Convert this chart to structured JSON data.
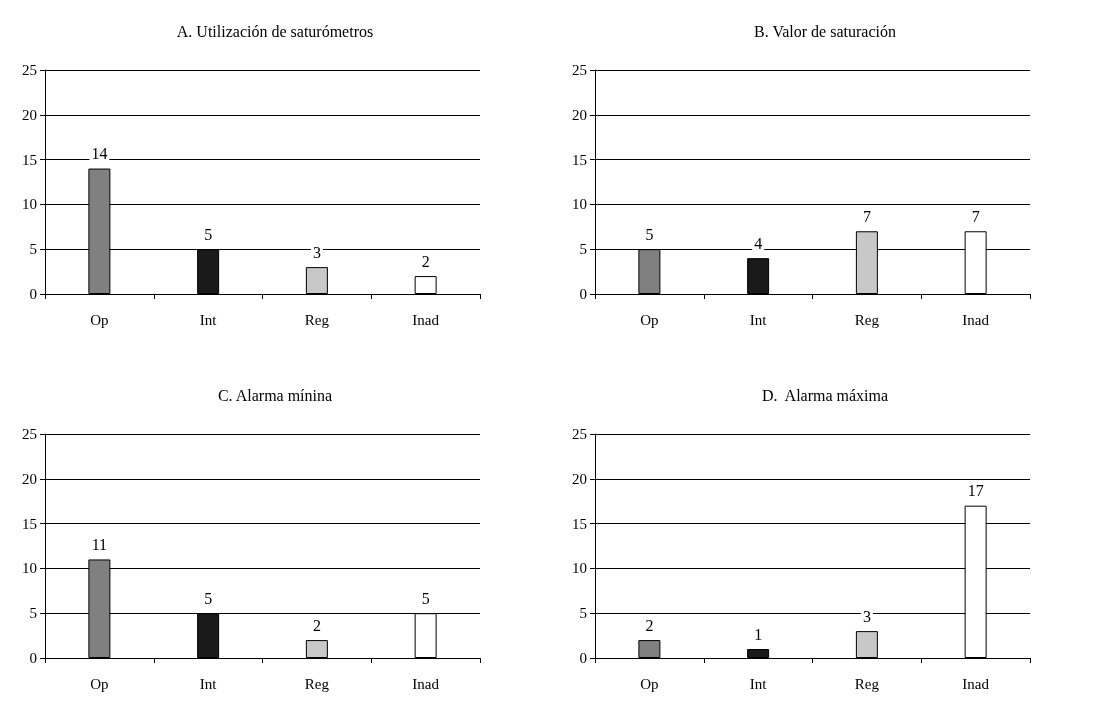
{
  "chart_data": [
    {
      "type": "bar",
      "title": "A. Utilización de saturómetros",
      "categories": [
        "Op",
        "Int",
        "Reg",
        "Inad"
      ],
      "values": [
        14,
        5,
        3,
        2
      ],
      "colors": [
        "#808080",
        "#1a1a1a",
        "#c8c8c8",
        "#ffffff"
      ],
      "ylim": [
        0,
        25
      ],
      "yticks": [
        0,
        5,
        10,
        15,
        20,
        25
      ],
      "grid": "y",
      "data_labels": true
    },
    {
      "type": "bar",
      "title": "B. Valor de saturación",
      "categories": [
        "Op",
        "Int",
        "Reg",
        "Inad"
      ],
      "values": [
        5,
        4,
        7,
        7
      ],
      "colors": [
        "#808080",
        "#1a1a1a",
        "#c8c8c8",
        "#ffffff"
      ],
      "ylim": [
        0,
        25
      ],
      "yticks": [
        0,
        5,
        10,
        15,
        20,
        25
      ],
      "grid": "y",
      "data_labels": true
    },
    {
      "type": "bar",
      "title": "C. Alarma mínina",
      "categories": [
        "Op",
        "Int",
        "Reg",
        "Inad"
      ],
      "values": [
        11,
        5,
        2,
        5
      ],
      "colors": [
        "#808080",
        "#1a1a1a",
        "#c8c8c8",
        "#ffffff"
      ],
      "ylim": [
        0,
        25
      ],
      "yticks": [
        0,
        5,
        10,
        15,
        20,
        25
      ],
      "grid": "y",
      "data_labels": true
    },
    {
      "type": "bar",
      "title": "D.  Alarma máxima",
      "categories": [
        "Op",
        "Int",
        "Reg",
        "Inad"
      ],
      "values": [
        2,
        1,
        3,
        17
      ],
      "colors": [
        "#808080",
        "#1a1a1a",
        "#c8c8c8",
        "#ffffff"
      ],
      "ylim": [
        0,
        25
      ],
      "yticks": [
        0,
        5,
        10,
        15,
        20,
        25
      ],
      "grid": "y",
      "data_labels": true
    }
  ]
}
